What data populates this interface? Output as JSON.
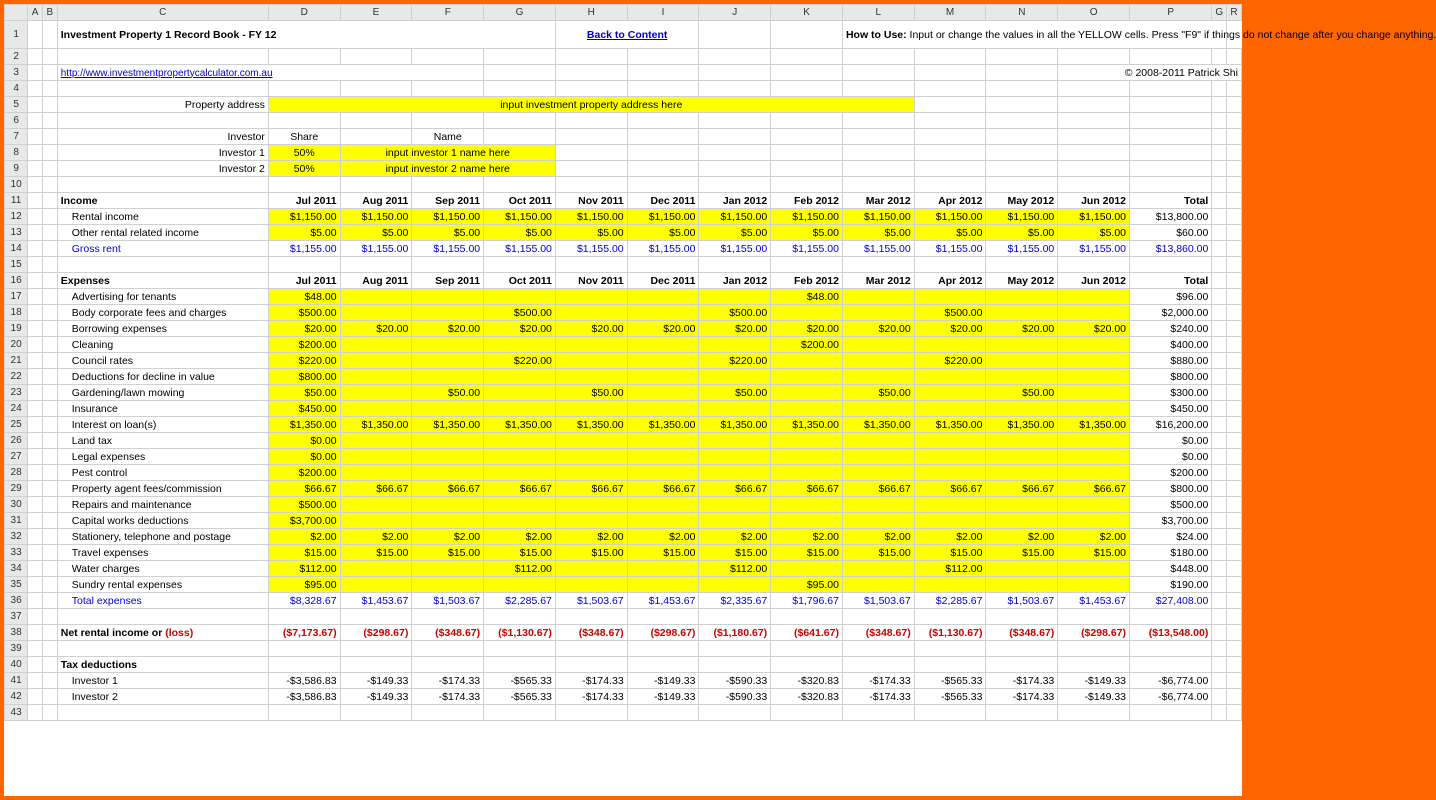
{
  "columns": [
    "A",
    "B",
    "C",
    "D",
    "E",
    "F",
    "G",
    "H",
    "I",
    "J",
    "K",
    "L",
    "M",
    "N",
    "O",
    "P",
    "G",
    "R"
  ],
  "rowNums": [
    1,
    2,
    3,
    4,
    5,
    6,
    7,
    8,
    9,
    10,
    11,
    12,
    13,
    14,
    15,
    16,
    17,
    18,
    19,
    20,
    21,
    22,
    23,
    24,
    25,
    26,
    27,
    28,
    29,
    30,
    31,
    32,
    33,
    34,
    35,
    36,
    37,
    38,
    39,
    40,
    41,
    42,
    43
  ],
  "title": "Investment Property 1 Record Book - FY 12",
  "backLink": "Back to Content",
  "helpLabel": "How to Use:",
  "helpText": " Input or change the values in all the YELLOW cells. Press \"F9\" if things do not change after you change anything.",
  "url": "http://www.investmentpropertycalculator.com.au",
  "copyright": "© 2008-2011 Patrick Shi",
  "propAddrLabel": "Property address",
  "propAddr": "input investment property address here",
  "investorHdr": "Investor",
  "shareHdr": "Share",
  "nameHdr": "Name",
  "inv1": "Investor 1",
  "inv1Share": "50%",
  "inv1Name": "input investor 1 name here",
  "inv2": "Investor 2",
  "inv2Share": "50%",
  "inv2Name": "input investor 2 name here",
  "months": [
    "Jul 2011",
    "Aug 2011",
    "Sep 2011",
    "Oct 2011",
    "Nov 2011",
    "Dec 2011",
    "Jan 2012",
    "Feb 2012",
    "Mar 2012",
    "Apr 2012",
    "May 2012",
    "Jun 2012"
  ],
  "totalLbl": "Total",
  "incomeLbl": "Income",
  "expensesLbl": "Expenses",
  "netLbl": "Net rental income or ",
  "lossLbl": "(loss)",
  "taxLbl": "Tax deductions",
  "income": [
    {
      "label": "Rental income",
      "vals": [
        "$1,150.00",
        "$1,150.00",
        "$1,150.00",
        "$1,150.00",
        "$1,150.00",
        "$1,150.00",
        "$1,150.00",
        "$1,150.00",
        "$1,150.00",
        "$1,150.00",
        "$1,150.00",
        "$1,150.00"
      ],
      "total": "$13,800.00",
      "yellow": true
    },
    {
      "label": "Other rental related income",
      "vals": [
        "$5.00",
        "$5.00",
        "$5.00",
        "$5.00",
        "$5.00",
        "$5.00",
        "$5.00",
        "$5.00",
        "$5.00",
        "$5.00",
        "$5.00",
        "$5.00"
      ],
      "total": "$60.00",
      "yellow": true
    },
    {
      "label": "Gross rent",
      "vals": [
        "$1,155.00",
        "$1,155.00",
        "$1,155.00",
        "$1,155.00",
        "$1,155.00",
        "$1,155.00",
        "$1,155.00",
        "$1,155.00",
        "$1,155.00",
        "$1,155.00",
        "$1,155.00",
        "$1,155.00"
      ],
      "total": "$13,860.00",
      "blue": true
    }
  ],
  "expenses": [
    {
      "label": "Advertising for tenants",
      "vals": [
        "$48.00",
        "",
        "",
        "",
        "",
        "",
        "",
        "$48.00",
        "",
        "",
        "",
        ""
      ],
      "total": "$96.00"
    },
    {
      "label": "Body corporate fees and charges",
      "vals": [
        "$500.00",
        "",
        "",
        "$500.00",
        "",
        "",
        "$500.00",
        "",
        "",
        "$500.00",
        "",
        ""
      ],
      "total": "$2,000.00"
    },
    {
      "label": "Borrowing expenses",
      "vals": [
        "$20.00",
        "$20.00",
        "$20.00",
        "$20.00",
        "$20.00",
        "$20.00",
        "$20.00",
        "$20.00",
        "$20.00",
        "$20.00",
        "$20.00",
        "$20.00"
      ],
      "total": "$240.00"
    },
    {
      "label": "Cleaning",
      "vals": [
        "$200.00",
        "",
        "",
        "",
        "",
        "",
        "",
        "$200.00",
        "",
        "",
        "",
        ""
      ],
      "total": "$400.00"
    },
    {
      "label": "Council rates",
      "vals": [
        "$220.00",
        "",
        "",
        "$220.00",
        "",
        "",
        "$220.00",
        "",
        "",
        "$220.00",
        "",
        ""
      ],
      "total": "$880.00"
    },
    {
      "label": "Deductions for decline in value",
      "vals": [
        "$800.00",
        "",
        "",
        "",
        "",
        "",
        "",
        "",
        "",
        "",
        "",
        ""
      ],
      "total": "$800.00"
    },
    {
      "label": "Gardening/lawn mowing",
      "vals": [
        "$50.00",
        "",
        "$50.00",
        "",
        "$50.00",
        "",
        "$50.00",
        "",
        "$50.00",
        "",
        "$50.00",
        ""
      ],
      "total": "$300.00"
    },
    {
      "label": "Insurance",
      "vals": [
        "$450.00",
        "",
        "",
        "",
        "",
        "",
        "",
        "",
        "",
        "",
        "",
        ""
      ],
      "total": "$450.00"
    },
    {
      "label": "Interest on loan(s)",
      "vals": [
        "$1,350.00",
        "$1,350.00",
        "$1,350.00",
        "$1,350.00",
        "$1,350.00",
        "$1,350.00",
        "$1,350.00",
        "$1,350.00",
        "$1,350.00",
        "$1,350.00",
        "$1,350.00",
        "$1,350.00"
      ],
      "total": "$16,200.00"
    },
    {
      "label": "Land tax",
      "vals": [
        "$0.00",
        "",
        "",
        "",
        "",
        "",
        "",
        "",
        "",
        "",
        "",
        ""
      ],
      "total": "$0.00"
    },
    {
      "label": "Legal expenses",
      "vals": [
        "$0.00",
        "",
        "",
        "",
        "",
        "",
        "",
        "",
        "",
        "",
        "",
        ""
      ],
      "total": "$0.00"
    },
    {
      "label": "Pest control",
      "vals": [
        "$200.00",
        "",
        "",
        "",
        "",
        "",
        "",
        "",
        "",
        "",
        "",
        ""
      ],
      "total": "$200.00"
    },
    {
      "label": "Property agent fees/commission",
      "vals": [
        "$66.67",
        "$66.67",
        "$66.67",
        "$66.67",
        "$66.67",
        "$66.67",
        "$66.67",
        "$66.67",
        "$66.67",
        "$66.67",
        "$66.67",
        "$66.67"
      ],
      "total": "$800.00"
    },
    {
      "label": "Repairs and maintenance",
      "vals": [
        "$500.00",
        "",
        "",
        "",
        "",
        "",
        "",
        "",
        "",
        "",
        "",
        ""
      ],
      "total": "$500.00"
    },
    {
      "label": "Capital works deductions",
      "vals": [
        "$3,700.00",
        "",
        "",
        "",
        "",
        "",
        "",
        "",
        "",
        "",
        "",
        ""
      ],
      "total": "$3,700.00"
    },
    {
      "label": "Stationery, telephone and postage",
      "vals": [
        "$2.00",
        "$2.00",
        "$2.00",
        "$2.00",
        "$2.00",
        "$2.00",
        "$2.00",
        "$2.00",
        "$2.00",
        "$2.00",
        "$2.00",
        "$2.00"
      ],
      "total": "$24.00"
    },
    {
      "label": "Travel expenses",
      "vals": [
        "$15.00",
        "$15.00",
        "$15.00",
        "$15.00",
        "$15.00",
        "$15.00",
        "$15.00",
        "$15.00",
        "$15.00",
        "$15.00",
        "$15.00",
        "$15.00"
      ],
      "total": "$180.00"
    },
    {
      "label": "Water charges",
      "vals": [
        "$112.00",
        "",
        "",
        "$112.00",
        "",
        "",
        "$112.00",
        "",
        "",
        "$112.00",
        "",
        ""
      ],
      "total": "$448.00"
    },
    {
      "label": "Sundry rental expenses",
      "vals": [
        "$95.00",
        "",
        "",
        "",
        "",
        "",
        "",
        "$95.00",
        "",
        "",
        "",
        ""
      ],
      "total": "$190.00"
    },
    {
      "label": "Total expenses",
      "vals": [
        "$8,328.67",
        "$1,453.67",
        "$1,503.67",
        "$2,285.67",
        "$1,503.67",
        "$1,453.67",
        "$2,335.67",
        "$1,796.67",
        "$1,503.67",
        "$2,285.67",
        "$1,503.67",
        "$1,453.67"
      ],
      "total": "$27,408.00",
      "blue": true,
      "noYellow": true
    }
  ],
  "net": {
    "vals": [
      "($7,173.67)",
      "($298.67)",
      "($348.67)",
      "($1,130.67)",
      "($348.67)",
      "($298.67)",
      "($1,180.67)",
      "($641.67)",
      "($348.67)",
      "($1,130.67)",
      "($348.67)",
      "($298.67)"
    ],
    "total": "($13,548.00)"
  },
  "tax": [
    {
      "label": "Investor 1",
      "vals": [
        "-$3,586.83",
        "-$149.33",
        "-$174.33",
        "-$565.33",
        "-$174.33",
        "-$149.33",
        "-$590.33",
        "-$320.83",
        "-$174.33",
        "-$565.33",
        "-$174.33",
        "-$149.33"
      ],
      "total": "-$6,774.00"
    },
    {
      "label": "Investor 2",
      "vals": [
        "-$3,586.83",
        "-$149.33",
        "-$174.33",
        "-$565.33",
        "-$174.33",
        "-$149.33",
        "-$590.33",
        "-$320.83",
        "-$174.33",
        "-$565.33",
        "-$174.33",
        "-$149.33"
      ],
      "total": "-$6,774.00"
    }
  ]
}
